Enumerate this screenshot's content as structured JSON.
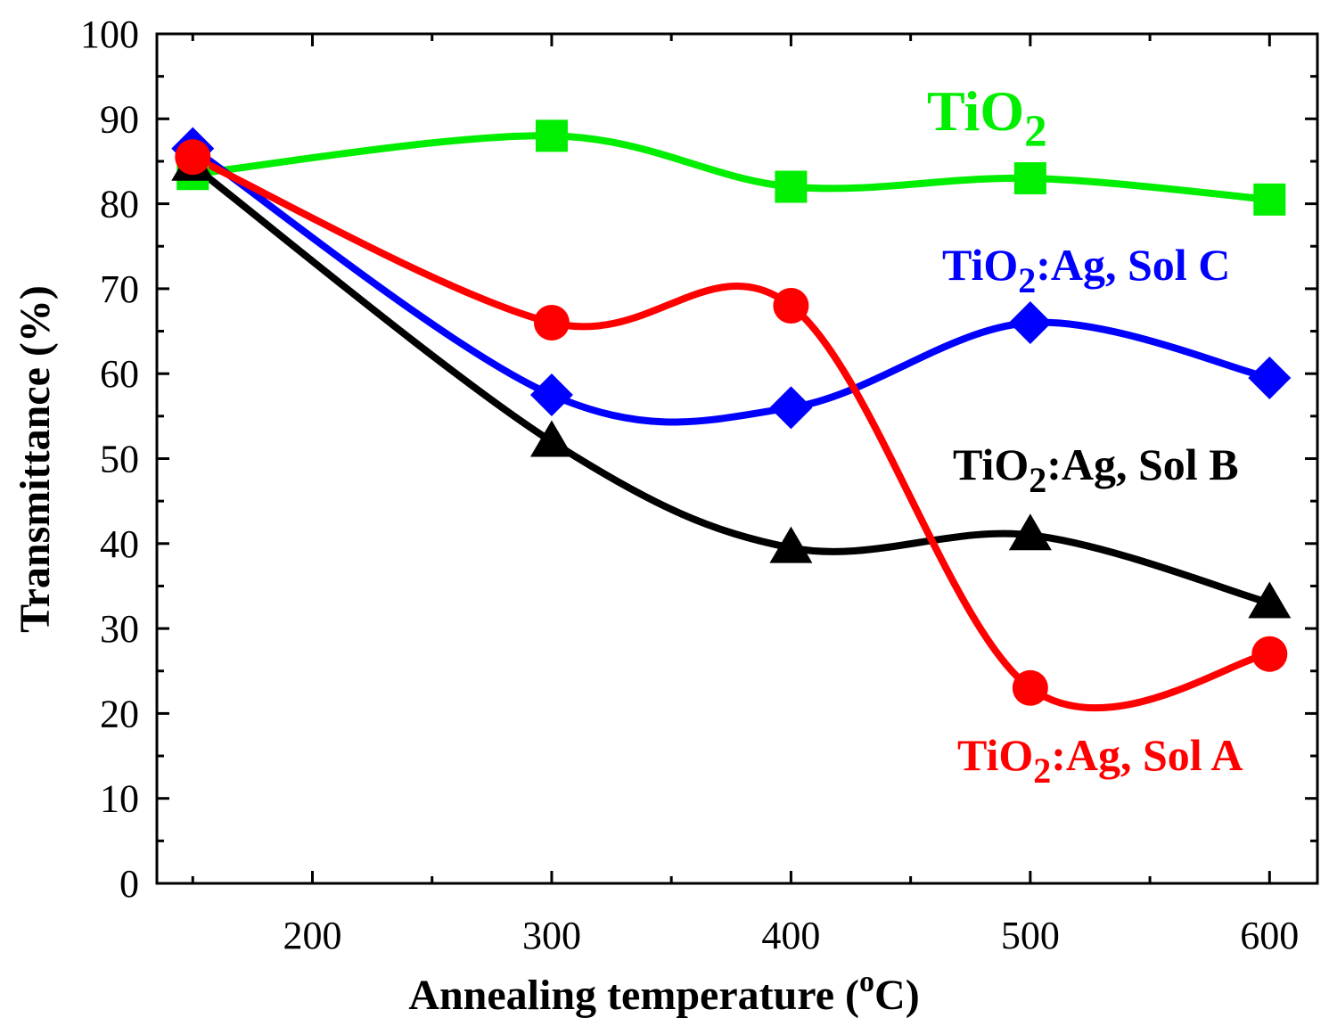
{
  "chart_data": {
    "type": "line",
    "xlabel": "Annealing temperature (",
    "xlabel_sup": "o",
    "xlabel_end": "C)",
    "ylabel": "Transmittance (%)",
    "xlim": [
      135,
      620
    ],
    "ylim": [
      0,
      100
    ],
    "xticks": [
      200,
      300,
      400,
      500,
      600
    ],
    "yticks": [
      0,
      10,
      20,
      30,
      40,
      50,
      60,
      70,
      80,
      90,
      100
    ],
    "series": [
      {
        "id": "tio2",
        "label_main": "TiO",
        "label_sub": "2",
        "label_rest": "",
        "color": "#00ee00",
        "marker": "square",
        "x": [
          150,
          300,
          400,
          500,
          600
        ],
        "y": [
          83.5,
          88,
          82,
          83,
          80.5
        ]
      },
      {
        "id": "sol_c",
        "label_main": "TiO",
        "label_sub": "2",
        "label_rest": ":Ag, Sol C",
        "color": "#0000ff",
        "marker": "diamond",
        "x": [
          150,
          300,
          400,
          500,
          600
        ],
        "y": [
          86.5,
          57.5,
          56,
          66,
          59.5
        ]
      },
      {
        "id": "sol_b",
        "label_main": "TiO",
        "label_sub": "2",
        "label_rest": ":Ag, Sol B",
        "color": "#000000",
        "marker": "triangle",
        "x": [
          150,
          300,
          400,
          500,
          600
        ],
        "y": [
          84.5,
          52,
          39.5,
          41,
          33
        ]
      },
      {
        "id": "sol_a",
        "label_main": "TiO",
        "label_sub": "2",
        "label_rest": ":Ag, Sol A",
        "color": "#ff0000",
        "marker": "circle",
        "x": [
          150,
          300,
          400,
          500,
          600
        ],
        "y": [
          85.5,
          66,
          68,
          23,
          27
        ]
      }
    ]
  }
}
